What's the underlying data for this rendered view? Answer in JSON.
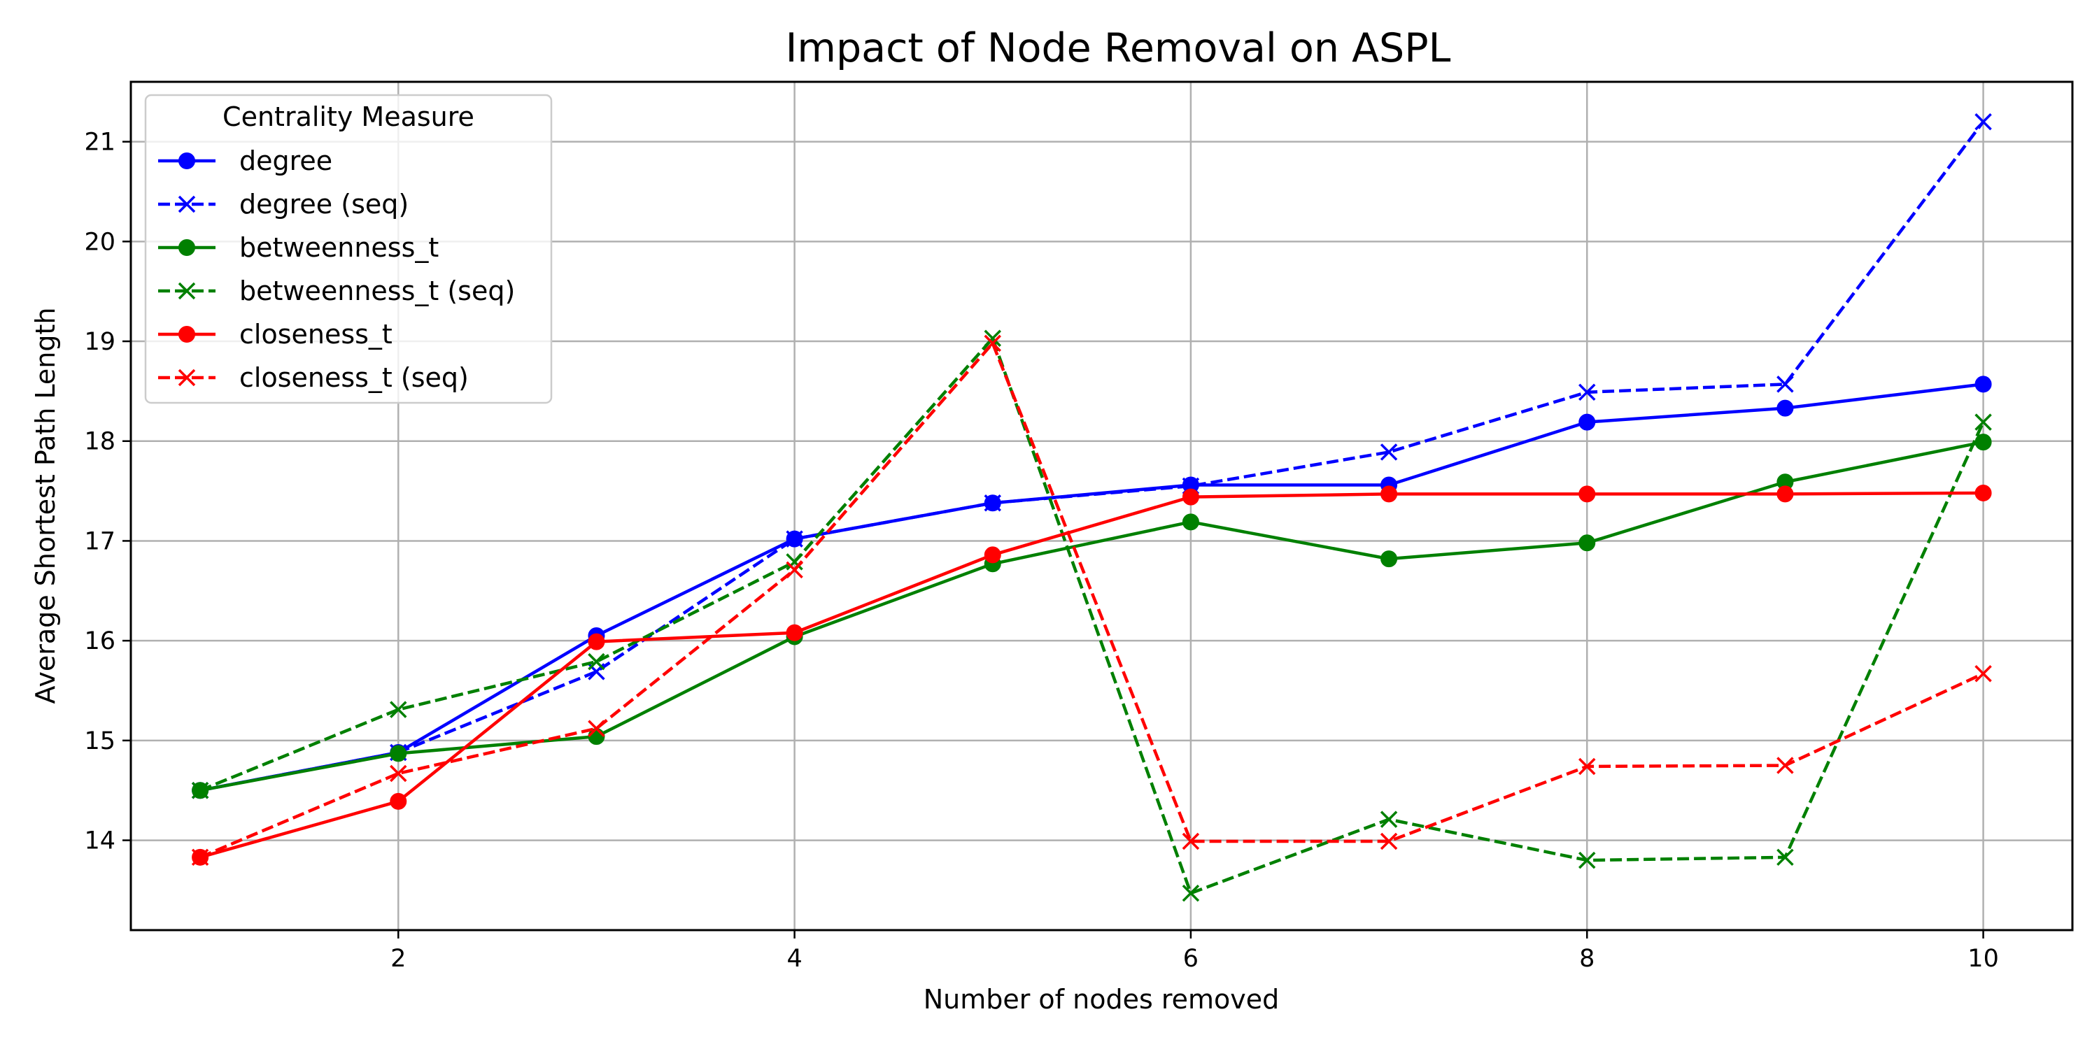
{
  "chart_data": {
    "type": "line",
    "title": "Impact of Node Removal on ASPL",
    "xlabel": "Number of nodes removed",
    "ylabel": "Average Shortest Path Length",
    "xlim": [
      0.65,
      10.45
    ],
    "ylim": [
      13.1,
      21.6
    ],
    "xticks": [
      2,
      4,
      6,
      8,
      10
    ],
    "yticks": [
      14,
      15,
      16,
      17,
      18,
      19,
      20,
      21
    ],
    "grid": true,
    "legend": {
      "title": "Centrality Measure",
      "placement": "top-left"
    },
    "x": [
      1,
      2,
      3,
      4,
      5,
      6,
      7,
      8,
      9,
      10
    ],
    "series": [
      {
        "name": "degree",
        "color": "#0000ff",
        "style": "solid",
        "marker": "circle",
        "values": [
          14.5,
          14.88,
          16.05,
          17.02,
          17.38,
          17.56,
          17.56,
          18.19,
          18.33,
          18.57
        ]
      },
      {
        "name": "degree (seq)",
        "color": "#0000ff",
        "style": "dashed",
        "marker": "x",
        "values": [
          14.5,
          14.88,
          15.69,
          17.02,
          17.38,
          17.55,
          17.89,
          18.49,
          18.57,
          21.2
        ]
      },
      {
        "name": "betweenness_t",
        "color": "#008000",
        "style": "solid",
        "marker": "circle",
        "values": [
          14.5,
          14.87,
          15.04,
          16.04,
          16.77,
          17.19,
          16.82,
          16.98,
          17.59,
          17.99
        ]
      },
      {
        "name": "betweenness_t (seq)",
        "color": "#008000",
        "style": "dashed",
        "marker": "x",
        "values": [
          14.5,
          15.31,
          15.79,
          16.79,
          19.03,
          13.47,
          14.21,
          13.8,
          13.83,
          18.19
        ]
      },
      {
        "name": "closeness_t",
        "color": "#ff0000",
        "style": "solid",
        "marker": "circle",
        "values": [
          13.83,
          14.39,
          15.99,
          16.08,
          16.86,
          17.44,
          17.47,
          17.47,
          17.47,
          17.48
        ]
      },
      {
        "name": "closeness_t (seq)",
        "color": "#ff0000",
        "style": "dashed",
        "marker": "x",
        "values": [
          13.83,
          14.67,
          15.12,
          16.71,
          18.98,
          13.99,
          13.99,
          14.74,
          14.75,
          15.67
        ]
      }
    ]
  }
}
